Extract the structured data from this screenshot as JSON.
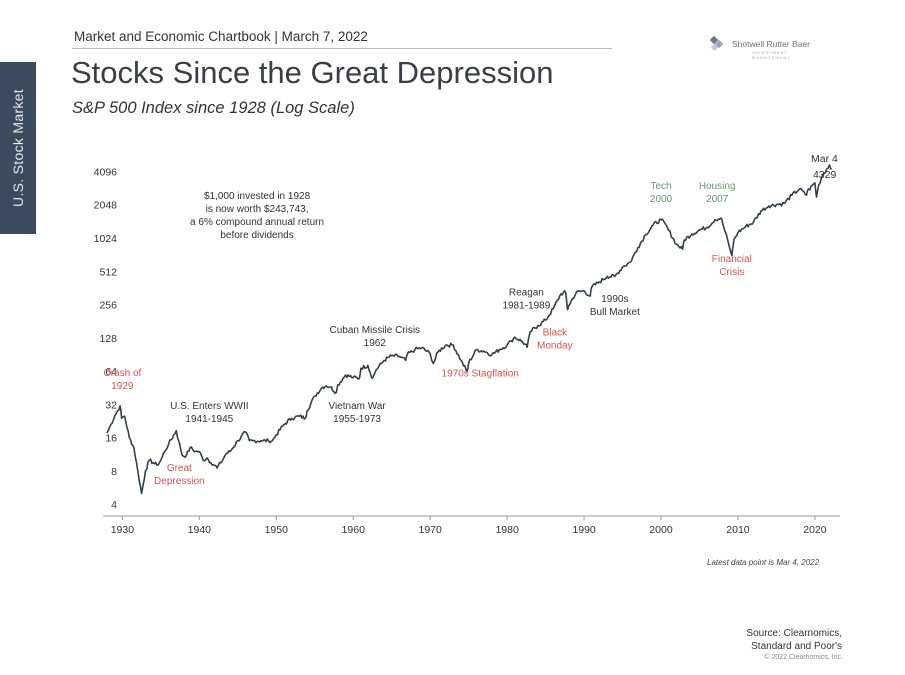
{
  "header": {
    "side_tab": "U.S. Stock Market",
    "top_line": "Market and Economic Chartbook | March 7, 2022",
    "logo_text": "Shotwell Rutter Baer",
    "logo_tagline": "INVESTMENT MANAGEMENT",
    "title": "Stocks Since the Great Depression",
    "subtitle": "S&P 500 Index since 1928 (Log Scale)"
  },
  "footer": {
    "latest_note": "Latest data point is Mar 4, 2022",
    "source_line1": "Source: Clearnomics,",
    "source_line2": "Standard and Poor's",
    "copyright": "© 2022 Clearnomics, Inc."
  },
  "colors": {
    "line": "#34404e",
    "red_annotation": "#d9534f",
    "green_annotation": "#6a9a6f",
    "dark_annotation": "#333333",
    "side_tab": "#3b4a5c"
  },
  "chart_data": {
    "type": "line",
    "title": "Stocks Since the Great Depression",
    "subtitle": "S&P 500 Index since 1928 (Log Scale)",
    "y_scale": "log2",
    "ylim": [
      3.4,
      5200
    ],
    "xlim": [
      1928,
      2023
    ],
    "y_ticks": [
      4,
      8,
      16,
      32,
      64,
      128,
      256,
      512,
      1024,
      2048,
      4096
    ],
    "x_ticks": [
      1930,
      1940,
      1950,
      1960,
      1970,
      1980,
      1990,
      2000,
      2010,
      2020
    ],
    "grid": false,
    "series": [
      {
        "values_year": [
          1928,
          1928.5,
          1929,
          1929.7,
          1929.9,
          1930.3,
          1930.9,
          1931.5,
          1932,
          1932.5,
          1933,
          1933.5,
          1934,
          1934.5,
          1935,
          1935.5,
          1936,
          1937,
          1937.3,
          1937.8,
          1938.3,
          1938.8,
          1939.5,
          1940,
          1940.5,
          1941,
          1941.5,
          1942,
          1942.3,
          1942.8,
          1943.5,
          1944,
          1945,
          1946,
          1946.5,
          1947,
          1948,
          1949,
          1949.5,
          1950,
          1951,
          1952,
          1953,
          1953.8,
          1954,
          1955,
          1956,
          1956.5,
          1957,
          1957.8,
          1958,
          1959,
          1960,
          1960.8,
          1961,
          1961.9,
          1962.5,
          1963,
          1964,
          1965,
          1966,
          1966.8,
          1967,
          1968,
          1968.9,
          1970,
          1970.4,
          1971,
          1972,
          1973,
          1974,
          1974.8,
          1975,
          1976,
          1977,
          1978,
          1979,
          1980,
          1980.5,
          1981,
          1982,
          1982.6,
          1983,
          1984,
          1985,
          1986,
          1987,
          1987.6,
          1987.85,
          1988,
          1989,
          1990,
          1990.8,
          1991,
          1992,
          1993,
          1994,
          1995,
          1996,
          1997,
          1998,
          1999,
          2000,
          2000.7,
          2001,
          2002,
          2002.8,
          2003,
          2004,
          2005,
          2006,
          2007,
          2007.8,
          2008,
          2008.8,
          2009.2,
          2009.5,
          2010,
          2011,
          2012,
          2013,
          2014,
          2015,
          2016,
          2017,
          2018,
          2018.9,
          2019,
          2020,
          2020.2,
          2020.5,
          2021,
          2021.9,
          2022.2
        ],
        "values": [
          17.6,
          21,
          25,
          31,
          24,
          25,
          16,
          13,
          8,
          5,
          8,
          10,
          9.5,
          9,
          10,
          12,
          14,
          18.5,
          15,
          11,
          11,
          13,
          12,
          12,
          10,
          10.5,
          9.5,
          9,
          8.5,
          9.5,
          11.5,
          12,
          15,
          18,
          15,
          15,
          15,
          15,
          15,
          17,
          21,
          24,
          25,
          24,
          28,
          38,
          46,
          47,
          46,
          41,
          48,
          59,
          56,
          55,
          68,
          72,
          55,
          66,
          80,
          88,
          87,
          80,
          90,
          100,
          104,
          92,
          75,
          95,
          110,
          110,
          80,
          63,
          76,
          100,
          97,
          90,
          100,
          110,
          120,
          130,
          118,
          105,
          145,
          165,
          185,
          235,
          320,
          330,
          230,
          250,
          330,
          340,
          305,
          370,
          410,
          460,
          460,
          560,
          620,
          840,
          1100,
          1350,
          1500,
          1320,
          1200,
          900,
          810,
          980,
          1110,
          1210,
          1280,
          1500,
          1550,
          1400,
          900,
          710,
          1000,
          1150,
          1300,
          1420,
          1800,
          2000,
          2060,
          2100,
          2500,
          2850,
          2500,
          2700,
          3230,
          2400,
          3100,
          3800,
          4700,
          4329
        ]
      }
    ],
    "last_point": {
      "label": "Mar 4",
      "value": "4329"
    },
    "annotations": [
      {
        "lines": [
          "$1,000 invested in 1928",
          "is now worth $243,743,",
          "a 6% compound annual return",
          "before dividends"
        ],
        "color": "dark",
        "x": 1947.5,
        "y": 2300
      },
      {
        "lines": [
          "Crash of",
          "1929"
        ],
        "color": "red",
        "x": 1930,
        "y": 58
      },
      {
        "lines": [
          "Great",
          "Depression"
        ],
        "color": "red",
        "x": 1937.4,
        "y": 8
      },
      {
        "lines": [
          "U.S. Enters WWII",
          "1941-1945"
        ],
        "color": "dark",
        "x": 1941.3,
        "y": 29
      },
      {
        "lines": [
          "Vietnam War",
          "1955-1973"
        ],
        "color": "dark",
        "x": 1960.5,
        "y": 29
      },
      {
        "lines": [
          "Cuban Missile Crisis",
          "1962"
        ],
        "color": "dark",
        "x": 1962.8,
        "y": 142
      },
      {
        "lines": [
          "1970s Stagflation"
        ],
        "color": "red",
        "x": 1976.5,
        "y": 57
      },
      {
        "lines": [
          "Reagan",
          "1981-1989"
        ],
        "color": "dark",
        "x": 1982.5,
        "y": 310
      },
      {
        "lines": [
          "Black",
          "Monday"
        ],
        "color": "red",
        "x": 1986.2,
        "y": 135
      },
      {
        "lines": [
          "1990s",
          "Bull Market"
        ],
        "color": "dark",
        "x": 1994,
        "y": 270
      },
      {
        "lines": [
          "Tech",
          "2000"
        ],
        "color": "green",
        "x": 2000,
        "y": 2850
      },
      {
        "lines": [
          "Housing",
          "2007"
        ],
        "color": "green",
        "x": 2007.3,
        "y": 2850
      },
      {
        "lines": [
          "Financial",
          "Crisis"
        ],
        "color": "red",
        "x": 2009.2,
        "y": 620
      }
    ]
  }
}
